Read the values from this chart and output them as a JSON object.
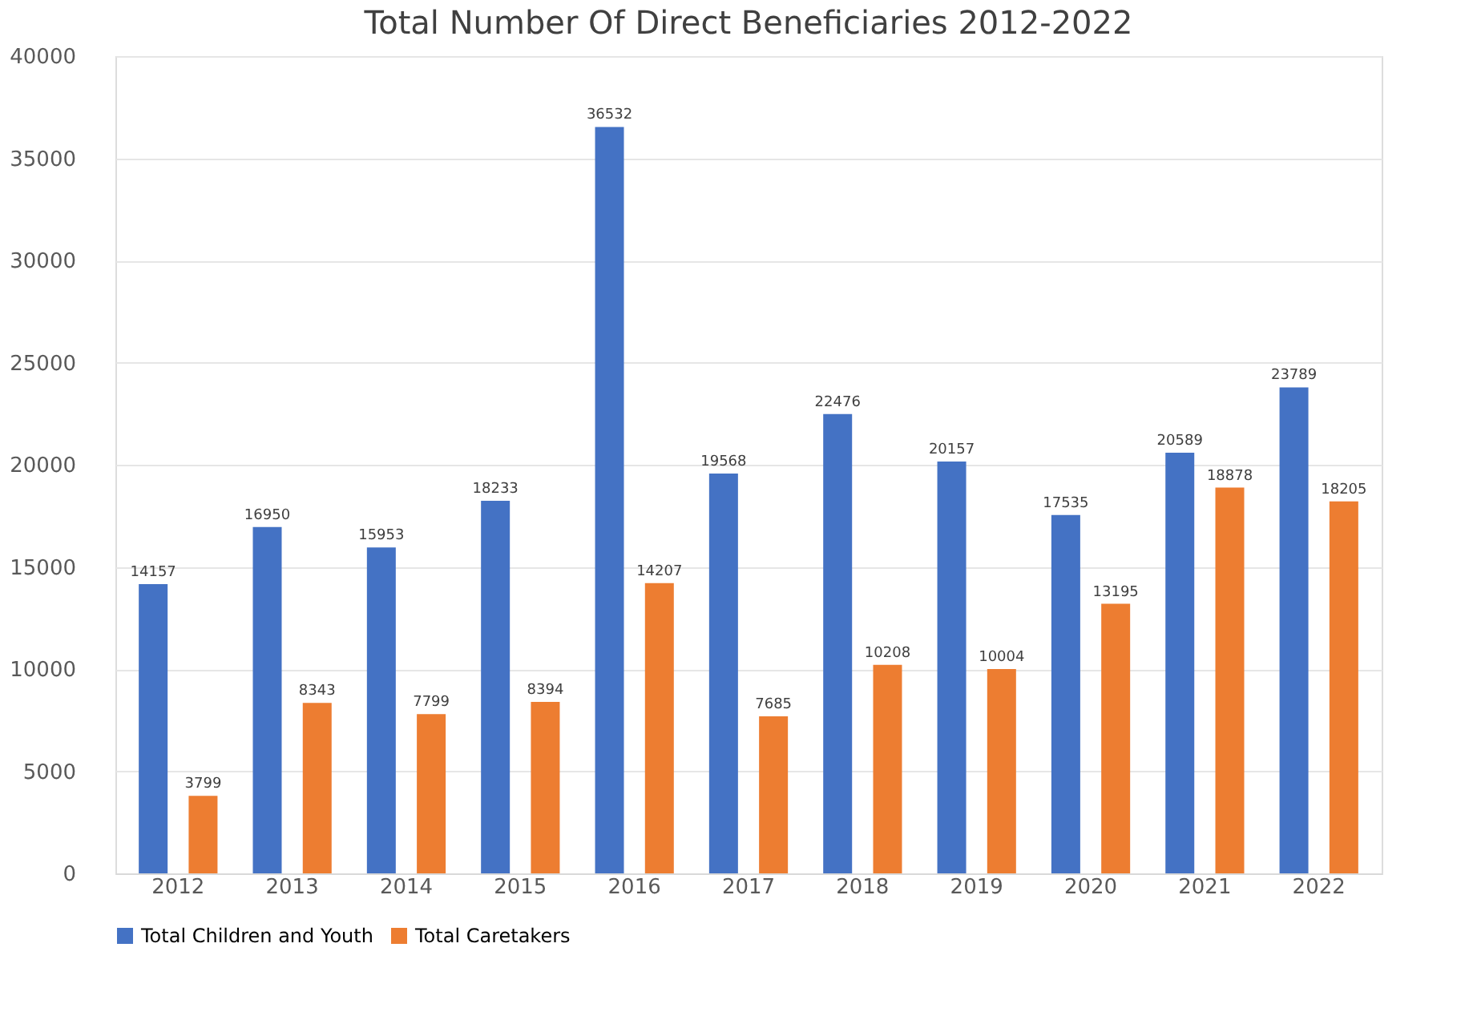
{
  "chart_data": {
    "type": "bar",
    "title": "Total Number Of Direct Beneficiaries 2012-2022",
    "categories": [
      "2012",
      "2013",
      "2014",
      "2015",
      "2016",
      "2017",
      "2018",
      "2019",
      "2020",
      "2021",
      "2022"
    ],
    "series": [
      {
        "name": "Total Children and Youth",
        "color": "#4472c4",
        "values": [
          14157,
          16950,
          15953,
          18233,
          36532,
          19568,
          22476,
          20157,
          17535,
          20589,
          23789
        ]
      },
      {
        "name": "Total Caretakers",
        "color": "#ed7d31",
        "values": [
          3799,
          8343,
          7799,
          8394,
          14207,
          7685,
          10208,
          10004,
          13195,
          18878,
          18205
        ]
      }
    ],
    "ylim": [
      0,
      40000
    ],
    "yticks": [
      0,
      5000,
      10000,
      15000,
      20000,
      25000,
      30000,
      35000,
      40000
    ],
    "grid": "y",
    "legend": "bottom",
    "data_labels": true
  }
}
